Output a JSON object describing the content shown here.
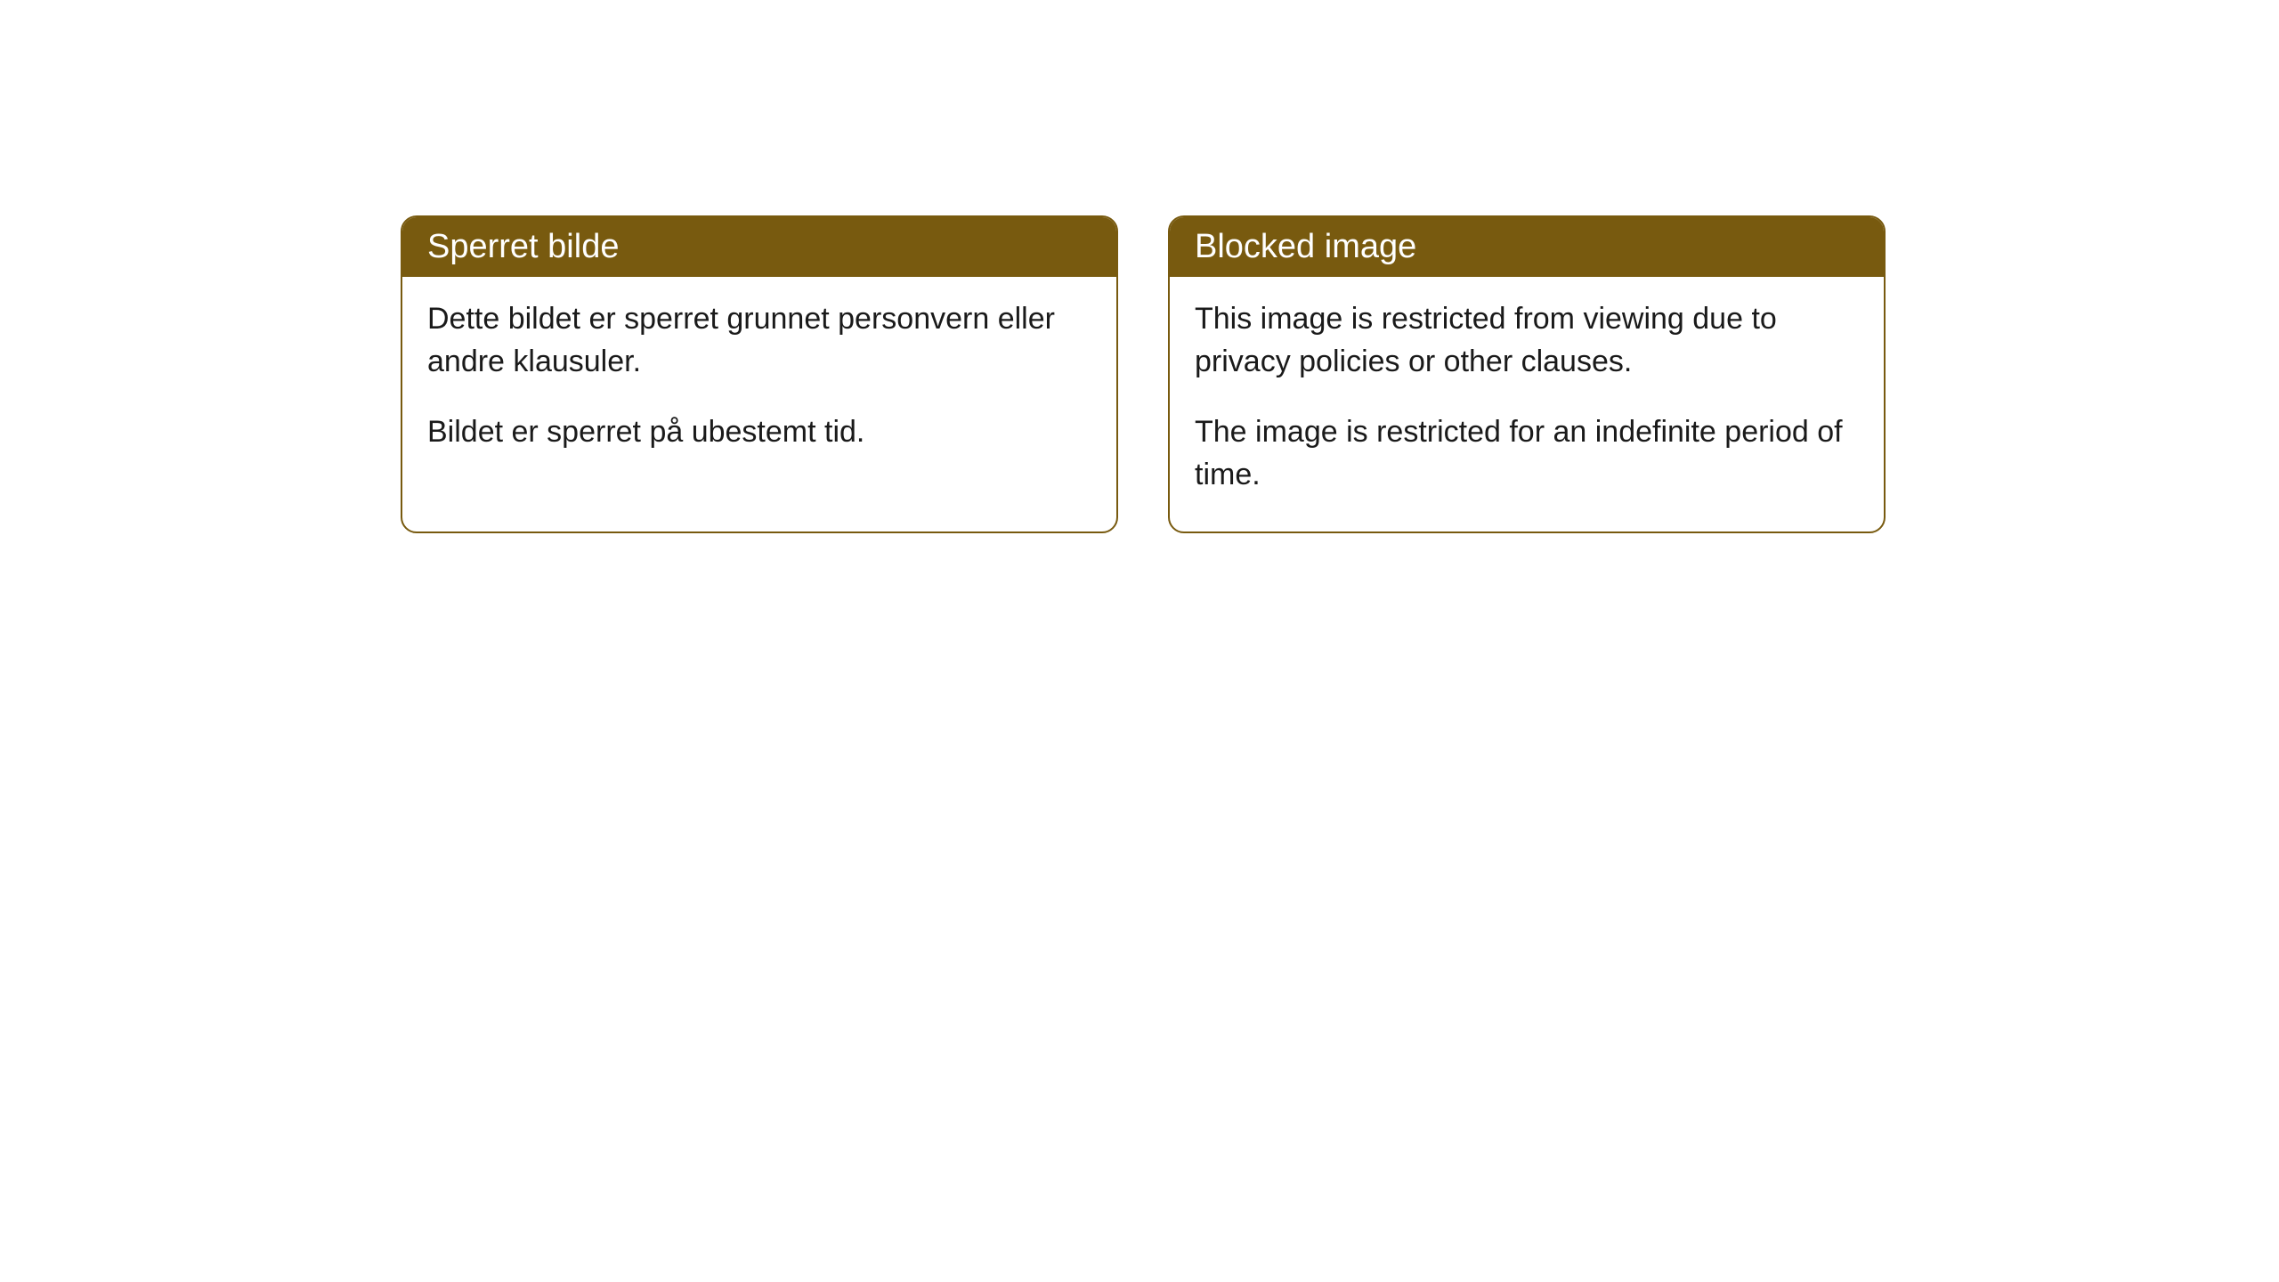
{
  "cards": [
    {
      "title": "Sperret bilde",
      "paragraph1": "Dette bildet er sperret grunnet personvern eller andre klausuler.",
      "paragraph2": "Bildet er sperret på ubestemt tid."
    },
    {
      "title": "Blocked image",
      "paragraph1": "This image is restricted from viewing due to privacy policies or other clauses.",
      "paragraph2": "The image is restricted for an indefinite period of time."
    }
  ],
  "styling": {
    "header_bg_color": "#785a0f",
    "header_text_color": "#ffffff",
    "border_color": "#785a0f",
    "border_radius": 18,
    "background_color": "#ffffff",
    "body_text_color": "#1a1a1a",
    "header_fontsize": 38,
    "body_fontsize": 34
  }
}
